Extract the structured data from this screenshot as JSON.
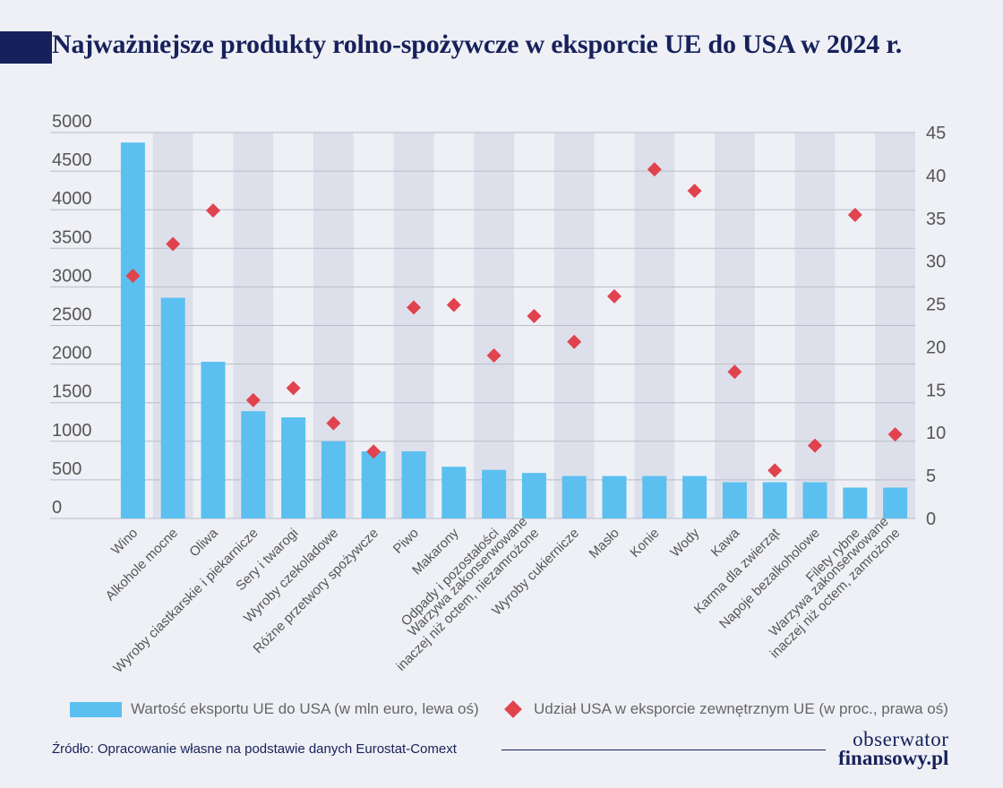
{
  "title": "Najważniejsze produkty rolno-spożywcze w eksporcie UE do USA w 2024 r.",
  "source": "Źródło: Opracowanie własne na podstawie danych Eurostat-Comext",
  "logo": {
    "line1": "obserwator",
    "line2": "finansowy.pl"
  },
  "colors": {
    "bar": "#5bc0f0",
    "diamond": "#e0434d",
    "title": "#16215b",
    "band": "#dde0eb"
  },
  "chart_data": {
    "type": "bar",
    "categories": [
      [
        "Wino"
      ],
      [
        "Alkohole mocne"
      ],
      [
        "Oliwa"
      ],
      [
        "Wyroby ciastkarskie i piekarnicze"
      ],
      [
        "Sery i twarogi"
      ],
      [
        "Wyroby czekoladowe"
      ],
      [
        "Różne przetwory spożywcze"
      ],
      [
        "Piwo"
      ],
      [
        "Makarony"
      ],
      [
        "Odpady i pozostałości"
      ],
      [
        "Warzywa zakonserwowane",
        "inaczej niż octem, niezamrożone"
      ],
      [
        "Wyroby cukiernicze"
      ],
      [
        "Masło"
      ],
      [
        "Konie"
      ],
      [
        "Wody"
      ],
      [
        "Kawa"
      ],
      [
        "Karma dla zwierząt"
      ],
      [
        "Napoje bezalkoholowe"
      ],
      [
        "Filety rybne"
      ],
      [
        "Warzywa zakonserwowane",
        "inaczej niż octem, zamrożone"
      ]
    ],
    "series": [
      {
        "name": "Wartość eksportu UE do USA  (w mln euro, lewa oś)",
        "type": "bar",
        "axis": "left",
        "values": [
          4870,
          2860,
          2030,
          1390,
          1310,
          1000,
          870,
          870,
          670,
          630,
          590,
          550,
          550,
          550,
          550,
          470,
          470,
          470,
          400,
          400
        ]
      },
      {
        "name": "Udział USA w eksporcie zewnętrznym UE (w proc., prawa oś)",
        "type": "scatter",
        "marker": "diamond",
        "axis": "right",
        "values": [
          28.3,
          32.0,
          35.9,
          13.8,
          15.2,
          11.1,
          7.8,
          24.6,
          24.9,
          19.0,
          23.6,
          20.6,
          25.9,
          40.7,
          38.2,
          17.1,
          5.6,
          8.5,
          35.4,
          9.8
        ]
      }
    ],
    "yleft": {
      "min": 0,
      "max": 5000,
      "ticks": [
        "0",
        "500",
        "1000",
        "1500",
        "2000",
        "2500",
        "3000",
        "3500",
        "4000",
        "4500",
        "5000"
      ]
    },
    "yright": {
      "min": 0,
      "max": 45,
      "ticks": [
        "0",
        "5",
        "10",
        "15",
        "20",
        "25",
        "30",
        "35",
        "40",
        "45"
      ]
    },
    "grid": true,
    "alternating_bands": true,
    "legend_position": "bottom"
  }
}
